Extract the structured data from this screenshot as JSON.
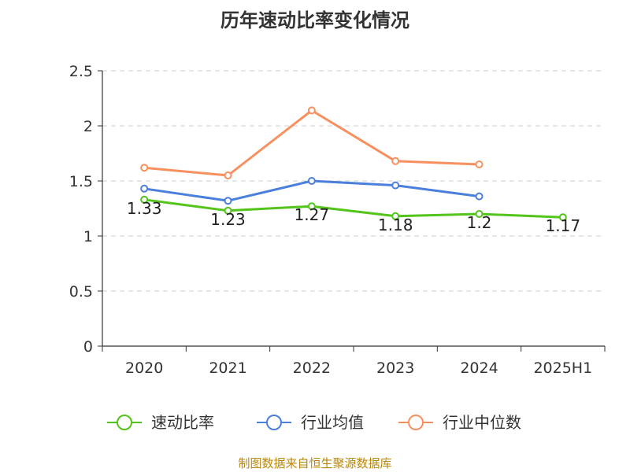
{
  "chart_data": {
    "type": "line",
    "title": "历年速动比率变化情况",
    "categories": [
      "2020",
      "2021",
      "2022",
      "2023",
      "2024",
      "2025H1"
    ],
    "ylim": [
      0,
      2.5
    ],
    "yticks": [
      "0",
      "0.5",
      "1",
      "1.5",
      "2",
      "2.5"
    ],
    "ytick_values": [
      0,
      0.5,
      1,
      1.5,
      2,
      2.5
    ],
    "grid": true,
    "legend_position": "bottom",
    "series": [
      {
        "name": "速动比率",
        "color": "#52c41a",
        "values": [
          1.33,
          1.23,
          1.27,
          1.18,
          1.2,
          1.17
        ],
        "labels": [
          "1.33",
          "1.23",
          "1.27",
          "1.18",
          "1.2",
          "1.17"
        ]
      },
      {
        "name": "行业均值",
        "color": "#4a7fdc",
        "values": [
          1.43,
          1.32,
          1.5,
          1.46,
          1.36,
          null
        ]
      },
      {
        "name": "行业中位数",
        "color": "#f7905e",
        "values": [
          1.62,
          1.55,
          2.14,
          1.68,
          1.65,
          null
        ]
      }
    ]
  },
  "source": "制图数据来自恒生聚源数据库"
}
